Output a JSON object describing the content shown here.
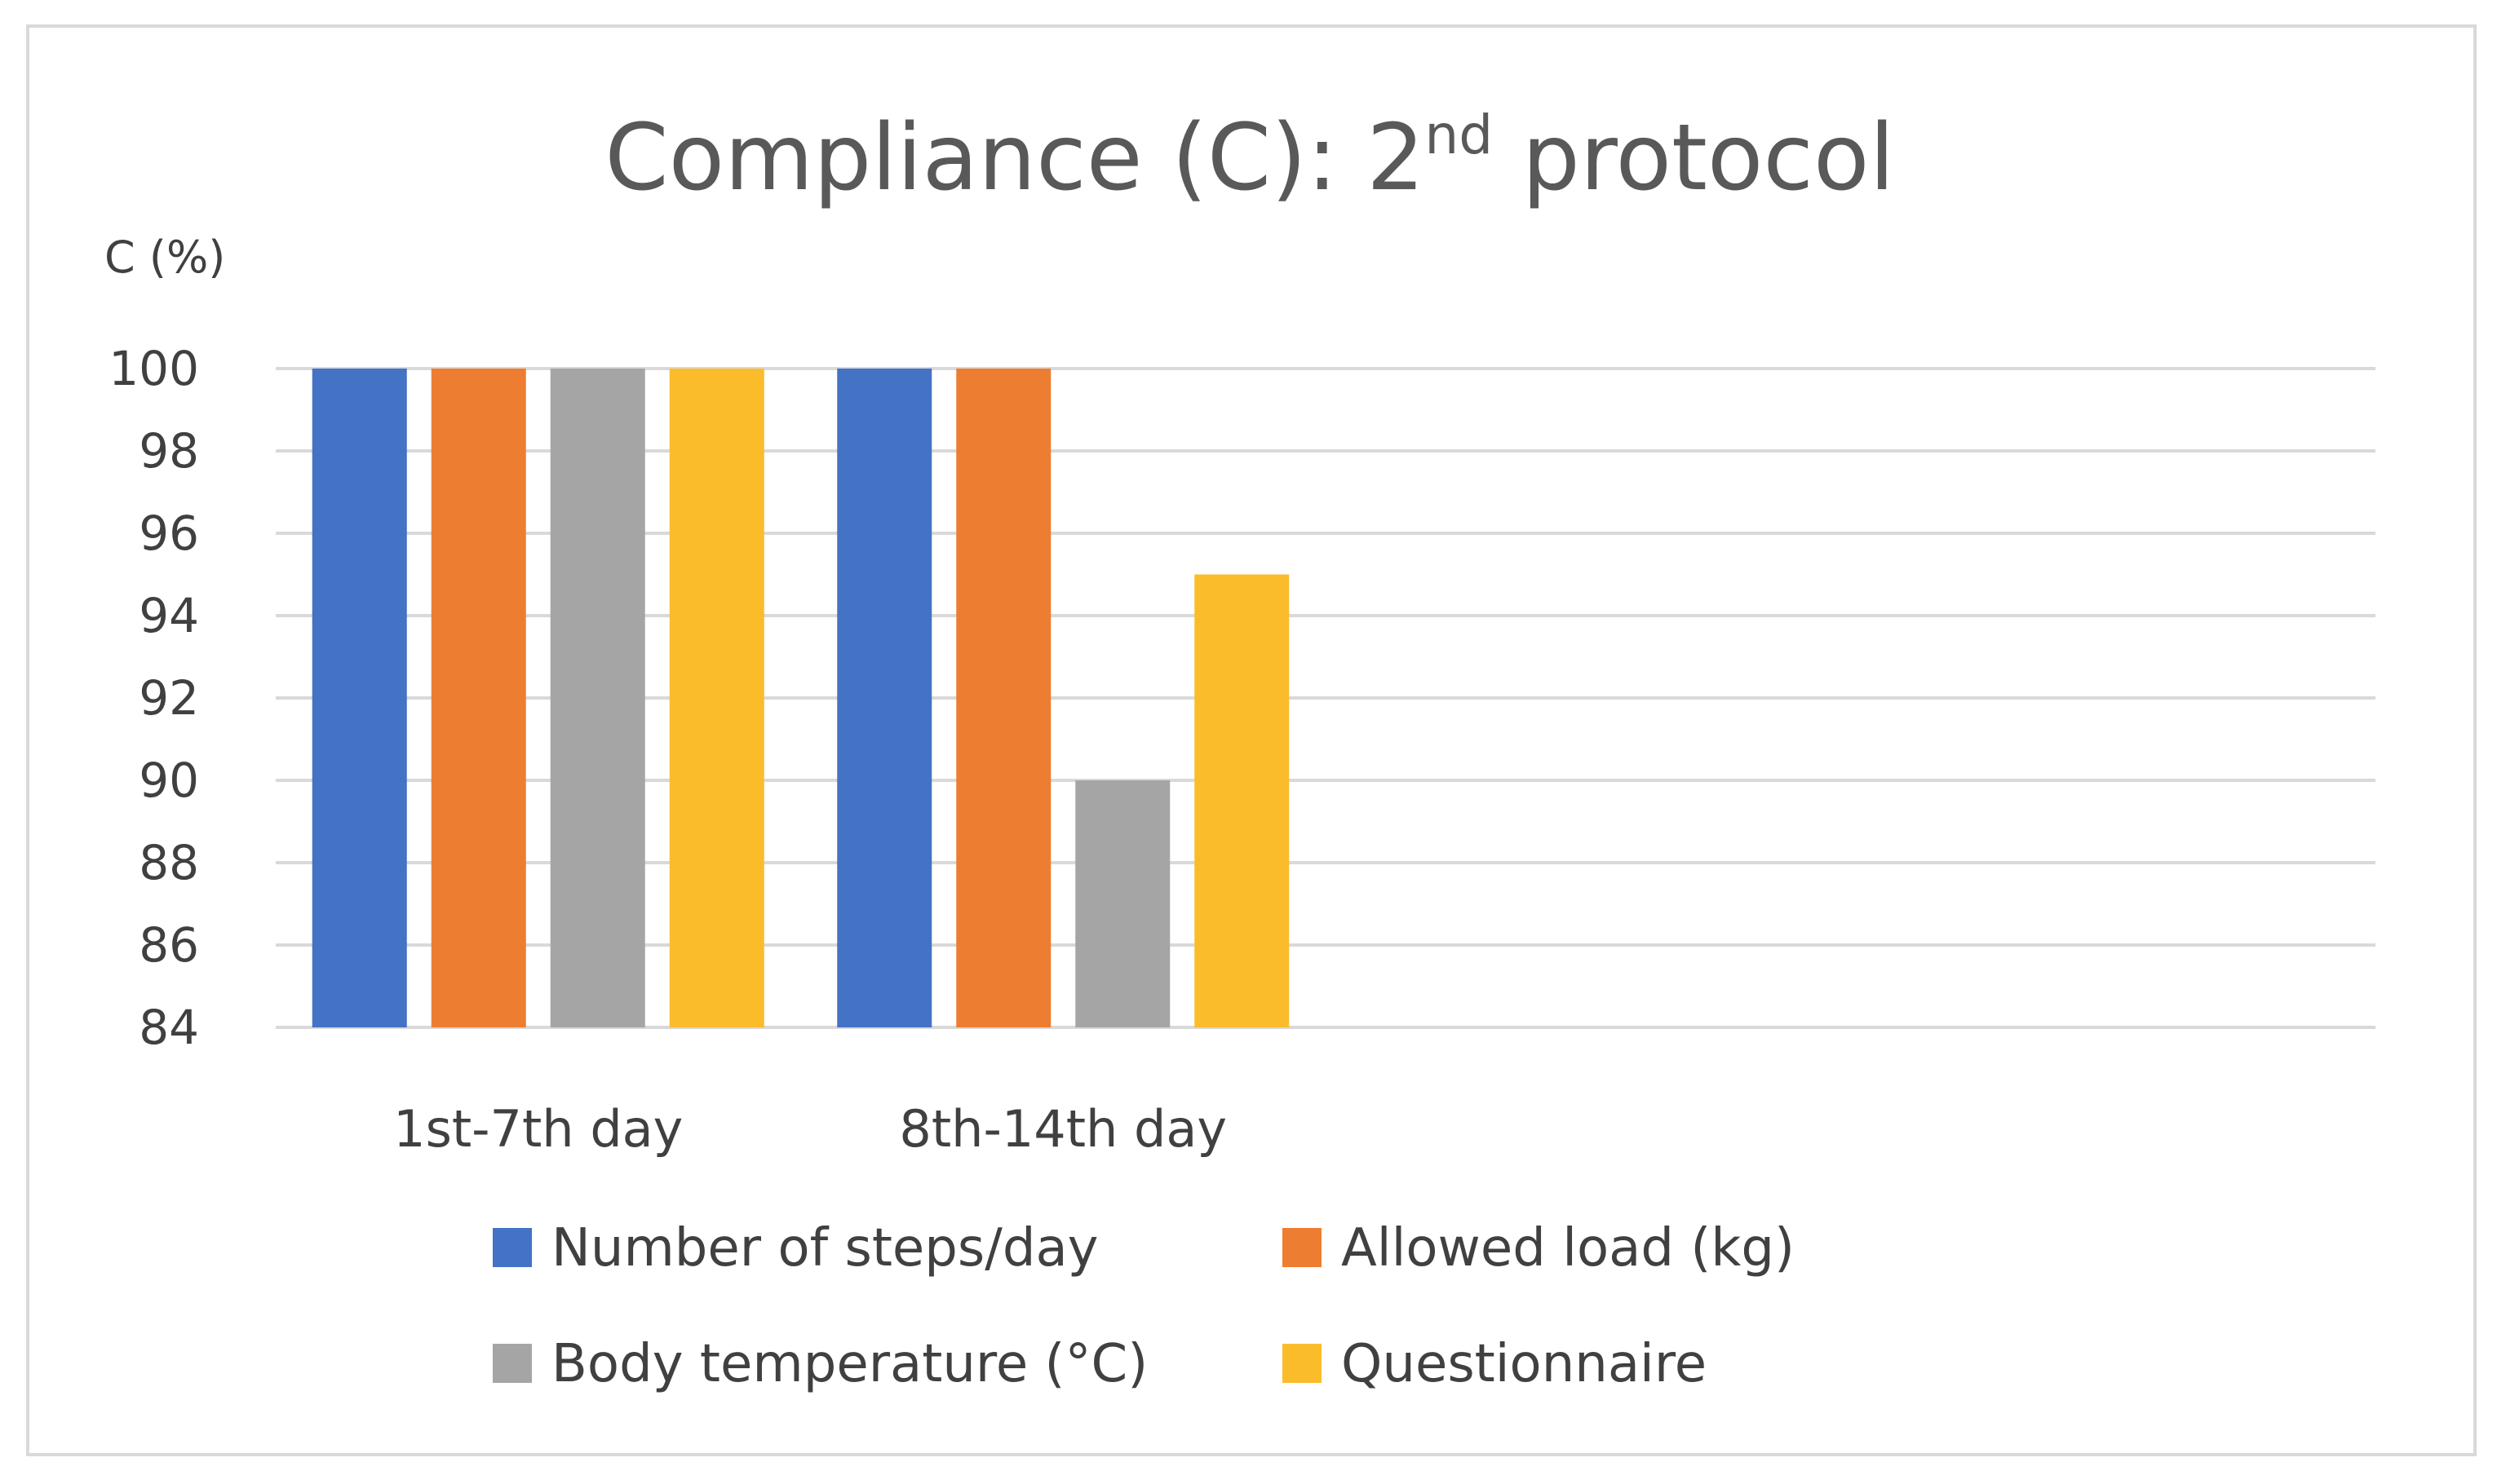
{
  "chart_data": {
    "type": "bar",
    "title_main": "Compliance (C): 2",
    "title_sup": "nd",
    "title_tail": " protocol",
    "ylabel": "C (%)",
    "xlabel": "",
    "ylim": [
      84,
      100
    ],
    "yticks": [
      84,
      86,
      88,
      90,
      92,
      94,
      96,
      98,
      100
    ],
    "categories": [
      "1st-7th day",
      "8th-14th  day",
      "",
      ""
    ],
    "series": [
      {
        "name": "Number of steps/day",
        "color": "#4472c4",
        "values": [
          100,
          100,
          null,
          null
        ]
      },
      {
        "name": "Allowed load (kg)",
        "color": "#ed7d31",
        "values": [
          100,
          100,
          null,
          null
        ]
      },
      {
        "name": "Body temperature (°C)",
        "color": "#a5a5a5",
        "values": [
          100,
          90,
          null,
          null
        ]
      },
      {
        "name": "Questionnaire",
        "color": "#fbbc2c",
        "values": [
          100,
          95,
          null,
          null
        ]
      }
    ],
    "grid": true,
    "legend_position": "bottom"
  }
}
